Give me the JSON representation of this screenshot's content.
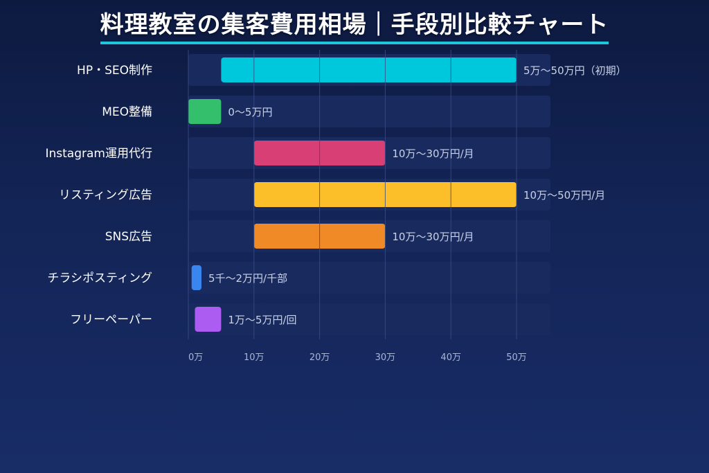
{
  "title": "料理教室の集客費用相場｜手段別比較チャート",
  "chart_data": {
    "type": "bar",
    "orientation": "horizontal",
    "value_unit": "万円",
    "xlim": [
      0,
      55
    ],
    "grid": true,
    "ticks": [
      {
        "value": 0,
        "label": "0万"
      },
      {
        "value": 10,
        "label": "10万"
      },
      {
        "value": 20,
        "label": "20万"
      },
      {
        "value": 30,
        "label": "30万"
      },
      {
        "value": 40,
        "label": "40万"
      },
      {
        "value": 50,
        "label": "50万"
      }
    ],
    "categories": [
      {
        "name": "HP・SEO制作",
        "min": 5,
        "max": 50,
        "label": "5万〜50万円（初期）",
        "color": "#00c8dc"
      },
      {
        "name": "MEO整備",
        "min": 0,
        "max": 5,
        "label": "0〜5万円",
        "color": "#33bf6b"
      },
      {
        "name": "Instagram運用代行",
        "min": 10,
        "max": 30,
        "label": "10万〜30万円/月",
        "color": "#d84075"
      },
      {
        "name": "リスティング広告",
        "min": 10,
        "max": 50,
        "label": "10万〜50万円/月",
        "color": "#fcbf2a"
      },
      {
        "name": "SNS広告",
        "min": 10,
        "max": 30,
        "label": "10万〜30万円/月",
        "color": "#ef8a27"
      },
      {
        "name": "チラシポスティング",
        "min": 0.5,
        "max": 2,
        "label": "5千〜2万円/千部",
        "color": "#3a86f0"
      },
      {
        "name": "フリーペーパー",
        "min": 1,
        "max": 5,
        "label": "1万〜5万円/回",
        "color": "#ac5cf0"
      }
    ]
  }
}
